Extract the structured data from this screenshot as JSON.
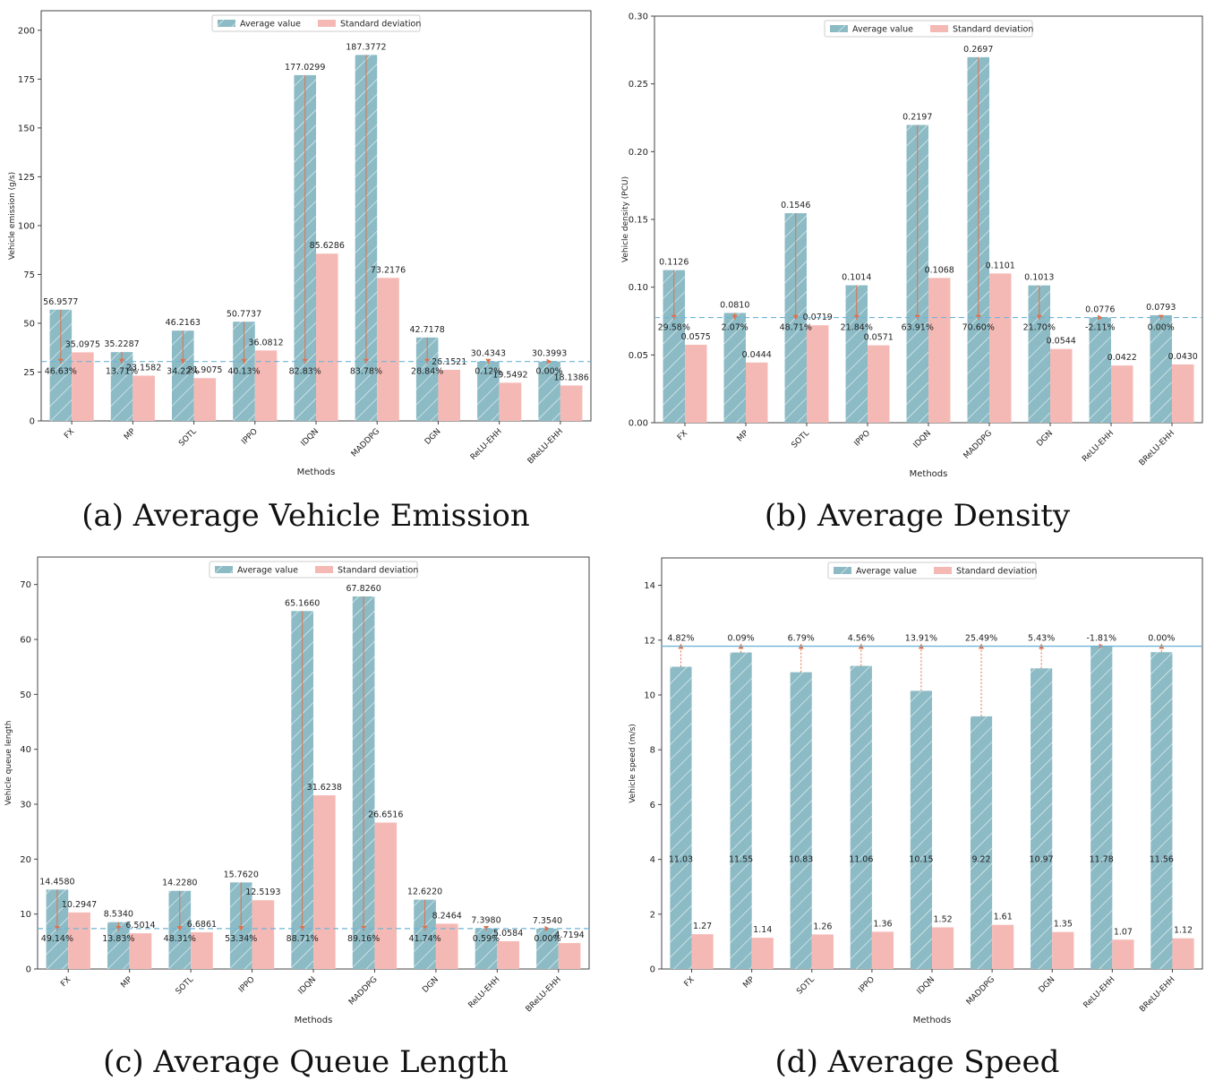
{
  "chart_data": [
    {
      "id": "a",
      "type": "bar",
      "categories": [
        "FX",
        "MP",
        "SOTL",
        "IPPO",
        "IDQN",
        "MADDPG",
        "DGN",
        "ReLU-EHH",
        "BReLU-EHH"
      ],
      "series": [
        {
          "name": "Average value",
          "values": [
            56.9577,
            35.2287,
            46.2163,
            50.7737,
            177.0299,
            187.3772,
            42.7178,
            30.4343,
            30.3993
          ],
          "color": "#8cbbc5"
        },
        {
          "name": "Standard deviation",
          "values": [
            35.0975,
            23.1582,
            21.9075,
            36.0812,
            85.6286,
            73.2176,
            26.1521,
            19.5492,
            18.1386
          ],
          "color": "#f5b9b5"
        }
      ],
      "avg_labels": [
        "56.9577",
        "35.2287",
        "46.2163",
        "50.7737",
        "177.0299",
        "187.3772",
        "42.7178",
        "30.4343",
        "30.3993"
      ],
      "std_labels": [
        "35.0975",
        "23.1582",
        "21.9075",
        "36.0812",
        "85.6286",
        "73.2176",
        "26.1521",
        "19.5492",
        "18.1386"
      ],
      "percent_labels": [
        "46.63%",
        "13.71%",
        "34.22%",
        "40.13%",
        "82.83%",
        "83.78%",
        "28.84%",
        "0.12%",
        "0.00%"
      ],
      "reference_line": 30.3993,
      "reference_style": "dashed",
      "xlabel": "Methods",
      "ylabel": "Vehicle emission (g/s)",
      "ylim": [
        0,
        210
      ],
      "yticks": [
        0,
        25,
        50,
        75,
        100,
        125,
        150,
        175,
        200
      ],
      "ytick_labels": [
        "0",
        "25",
        "50",
        "75",
        "100",
        "125",
        "150",
        "175",
        "200"
      ],
      "legend_position": "top-center",
      "grid": false
    },
    {
      "id": "b",
      "type": "bar",
      "categories": [
        "FX",
        "MP",
        "SOTL",
        "IPPO",
        "IDQN",
        "MADDPG",
        "DGN",
        "ReLU-EHH",
        "BReLU-EHH"
      ],
      "series": [
        {
          "name": "Average value",
          "values": [
            0.1126,
            0.081,
            0.1546,
            0.1014,
            0.2197,
            0.2697,
            0.1013,
            0.0776,
            0.0793
          ],
          "color": "#8cbbc5"
        },
        {
          "name": "Standard deviation",
          "values": [
            0.0575,
            0.0444,
            0.0719,
            0.0571,
            0.1068,
            0.1101,
            0.0544,
            0.0422,
            0.043
          ],
          "color": "#f5b9b5"
        }
      ],
      "avg_labels": [
        "0.1126",
        "0.0810",
        "0.1546",
        "0.1014",
        "0.2197",
        "0.2697",
        "0.1013",
        "0.0776",
        "0.0793"
      ],
      "std_labels": [
        "0.0575",
        "0.0444",
        "0.0719",
        "0.0571",
        "0.1068",
        "0.1101",
        "0.0544",
        "0.0422",
        "0.0430"
      ],
      "percent_labels": [
        "29.58%",
        "2.07%",
        "48.71%",
        "21.84%",
        "63.91%",
        "70.60%",
        "21.70%",
        "-2.11%",
        "0.00%"
      ],
      "reference_line": 0.0776,
      "reference_style": "dashed",
      "xlabel": "Methods",
      "ylabel": "Vehicle density (PCU)",
      "ylim": [
        0,
        0.3
      ],
      "yticks": [
        0,
        0.05,
        0.1,
        0.15,
        0.2,
        0.25,
        0.3
      ],
      "ytick_labels": [
        "0.00",
        "0.05",
        "0.10",
        "0.15",
        "0.20",
        "0.25",
        "0.30"
      ],
      "legend_position": "top-center",
      "grid": false
    },
    {
      "id": "c",
      "type": "bar",
      "categories": [
        "FX",
        "MP",
        "SOTL",
        "IPPO",
        "IDQN",
        "MADDPG",
        "DGN",
        "ReLU-EHH",
        "BReLU-EHH"
      ],
      "series": [
        {
          "name": "Average value",
          "values": [
            14.458,
            8.534,
            14.228,
            15.762,
            65.166,
            67.826,
            12.622,
            7.398,
            7.354
          ],
          "color": "#8cbbc5"
        },
        {
          "name": "Standard deviation",
          "values": [
            10.2947,
            6.5014,
            6.6861,
            12.5193,
            31.6238,
            26.6516,
            8.2464,
            5.0584,
            4.7194
          ],
          "color": "#f5b9b5"
        }
      ],
      "avg_labels": [
        "14.4580",
        "8.5340",
        "14.2280",
        "15.7620",
        "65.1660",
        "67.8260",
        "12.6220",
        "7.3980",
        "7.3540"
      ],
      "std_labels": [
        "10.2947",
        "6.5014",
        "6.6861",
        "12.5193",
        "31.6238",
        "26.6516",
        "8.2464",
        "5.0584",
        "4.7194"
      ],
      "percent_labels": [
        "49.14%",
        "13.83%",
        "48.31%",
        "53.34%",
        "88.71%",
        "89.16%",
        "41.74%",
        "0.59%",
        "0.00%"
      ],
      "reference_line": 7.354,
      "reference_style": "dashed",
      "xlabel": "Methods",
      "ylabel": "Vehicle queue length",
      "ylim": [
        0,
        75
      ],
      "yticks": [
        0,
        10,
        20,
        30,
        40,
        50,
        60,
        70
      ],
      "ytick_labels": [
        "0",
        "10",
        "20",
        "30",
        "40",
        "50",
        "60",
        "70"
      ],
      "legend_position": "top-center",
      "grid": false
    },
    {
      "id": "d",
      "type": "bar",
      "categories": [
        "FX",
        "MP",
        "SOTL",
        "IPPO",
        "IDQN",
        "MADDPG",
        "DGN",
        "ReLU-EHH",
        "BReLU-EHH"
      ],
      "series": [
        {
          "name": "Average value",
          "values": [
            11.03,
            11.55,
            10.83,
            11.06,
            10.15,
            9.22,
            10.97,
            11.78,
            11.56
          ],
          "color": "#8cbbc5"
        },
        {
          "name": "Standard deviation",
          "values": [
            1.27,
            1.14,
            1.26,
            1.36,
            1.52,
            1.61,
            1.35,
            1.07,
            1.12
          ],
          "color": "#f5b9b5"
        }
      ],
      "avg_labels": [
        "11.03",
        "11.55",
        "10.83",
        "11.06",
        "10.15",
        "9.22",
        "10.97",
        "11.78",
        "11.56"
      ],
      "std_labels": [
        "1.27",
        "1.14",
        "1.26",
        "1.36",
        "1.52",
        "1.61",
        "1.35",
        "1.07",
        "1.12"
      ],
      "percent_labels": [
        "4.82%",
        "0.09%",
        "6.79%",
        "4.56%",
        "13.91%",
        "25.49%",
        "5.43%",
        "-1.81%",
        "0.00%"
      ],
      "reference_line": 11.78,
      "reference_style": "solid",
      "xlabel": "Methods",
      "ylabel": "Vehicle speed (m/s)",
      "ylim": [
        0,
        15
      ],
      "yticks": [
        0,
        2,
        4,
        6,
        8,
        10,
        12,
        14
      ],
      "ytick_labels": [
        "0",
        "2",
        "4",
        "6",
        "8",
        "10",
        "12",
        "14"
      ],
      "legend_position": "top-center",
      "grid": false
    }
  ],
  "captions": {
    "a": "(a) Average Vehicle Emission",
    "b": "(b) Average Density",
    "c": "(c) Average Queue Length",
    "d": "(d) Average Speed"
  }
}
